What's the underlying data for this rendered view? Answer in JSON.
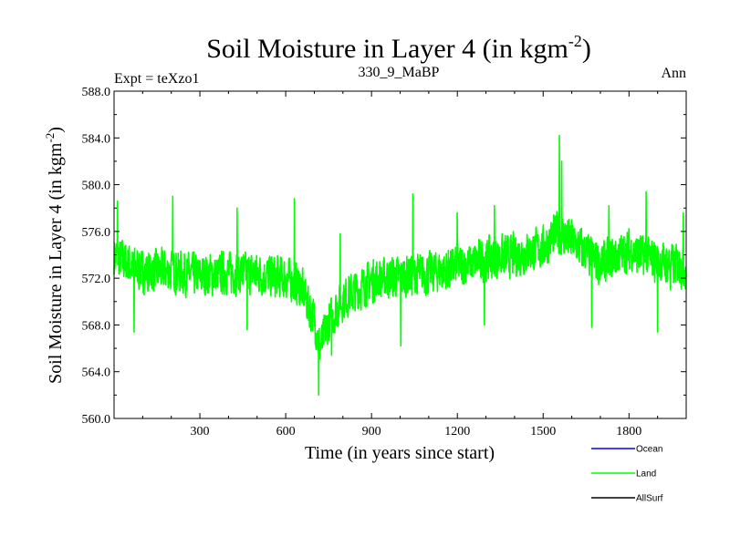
{
  "chart_data": {
    "type": "line",
    "title": "Soil Moisture in Layer 4 (in kgm",
    "title_sup": "-2",
    "title_end": ")",
    "subtitle_left": "Expt = teXzo1",
    "subtitle_center": "330_9_MaBP",
    "subtitle_right": "Ann",
    "xlabel": "Time (in years since start)",
    "ylabel": "Soil Moisture in Layer 4 (in kgm",
    "ylabel_sup": "-2",
    "ylabel_end": ")",
    "xlim": [
      0,
      2000
    ],
    "ylim": [
      560.0,
      588.0
    ],
    "xticks": [
      300,
      600,
      900,
      1200,
      1500,
      1800
    ],
    "yticks": [
      "560.0",
      "564.0",
      "568.0",
      "572.0",
      "576.0",
      "580.0",
      "584.0",
      "588.0"
    ],
    "legend": [
      {
        "name": "Ocean",
        "color": "#0000ff"
      },
      {
        "name": "Land",
        "color": "#00ff00"
      },
      {
        "name": "AllSurf",
        "color": "#000000"
      }
    ],
    "series": [
      {
        "name": "Land",
        "color": "#00ff00",
        "anchors": [
          [
            0,
            574.0
          ],
          [
            50,
            573.2
          ],
          [
            100,
            572.6
          ],
          [
            200,
            572.6
          ],
          [
            300,
            572.2
          ],
          [
            400,
            572.5
          ],
          [
            500,
            572.4
          ],
          [
            600,
            572.0
          ],
          [
            650,
            571.4
          ],
          [
            700,
            568.5
          ],
          [
            720,
            566.0
          ],
          [
            750,
            568.2
          ],
          [
            800,
            570.2
          ],
          [
            900,
            571.8
          ],
          [
            1000,
            572.2
          ],
          [
            1100,
            572.4
          ],
          [
            1200,
            573.0
          ],
          [
            1300,
            573.6
          ],
          [
            1400,
            574.0
          ],
          [
            1500,
            574.6
          ],
          [
            1550,
            576.0
          ],
          [
            1600,
            575.2
          ],
          [
            1700,
            573.2
          ],
          [
            1800,
            574.4
          ],
          [
            1900,
            573.4
          ],
          [
            2000,
            573.0
          ]
        ],
        "spikes": [
          [
            12,
            578.6
          ],
          [
            70,
            567.4
          ],
          [
            120,
            571.0
          ],
          [
            205,
            579.0
          ],
          [
            430,
            578.0
          ],
          [
            465,
            567.6
          ],
          [
            630,
            578.8
          ],
          [
            715,
            562.0
          ],
          [
            760,
            565.4
          ],
          [
            790,
            575.8
          ],
          [
            1003,
            566.2
          ],
          [
            1045,
            579.2
          ],
          [
            1200,
            577.6
          ],
          [
            1295,
            568.0
          ],
          [
            1330,
            578.2
          ],
          [
            1557,
            584.2
          ],
          [
            1565,
            582.0
          ],
          [
            1670,
            567.8
          ],
          [
            1730,
            578.2
          ],
          [
            1860,
            579.4
          ],
          [
            1900,
            567.4
          ],
          [
            1945,
            571.0
          ],
          [
            1990,
            577.6
          ]
        ],
        "amplitude": 1.7,
        "samples": 2000,
        "seed": 7
      },
      {
        "name": "Ocean",
        "color": "#0000ff",
        "values": []
      },
      {
        "name": "AllSurf",
        "color": "#000000",
        "values": []
      }
    ]
  }
}
